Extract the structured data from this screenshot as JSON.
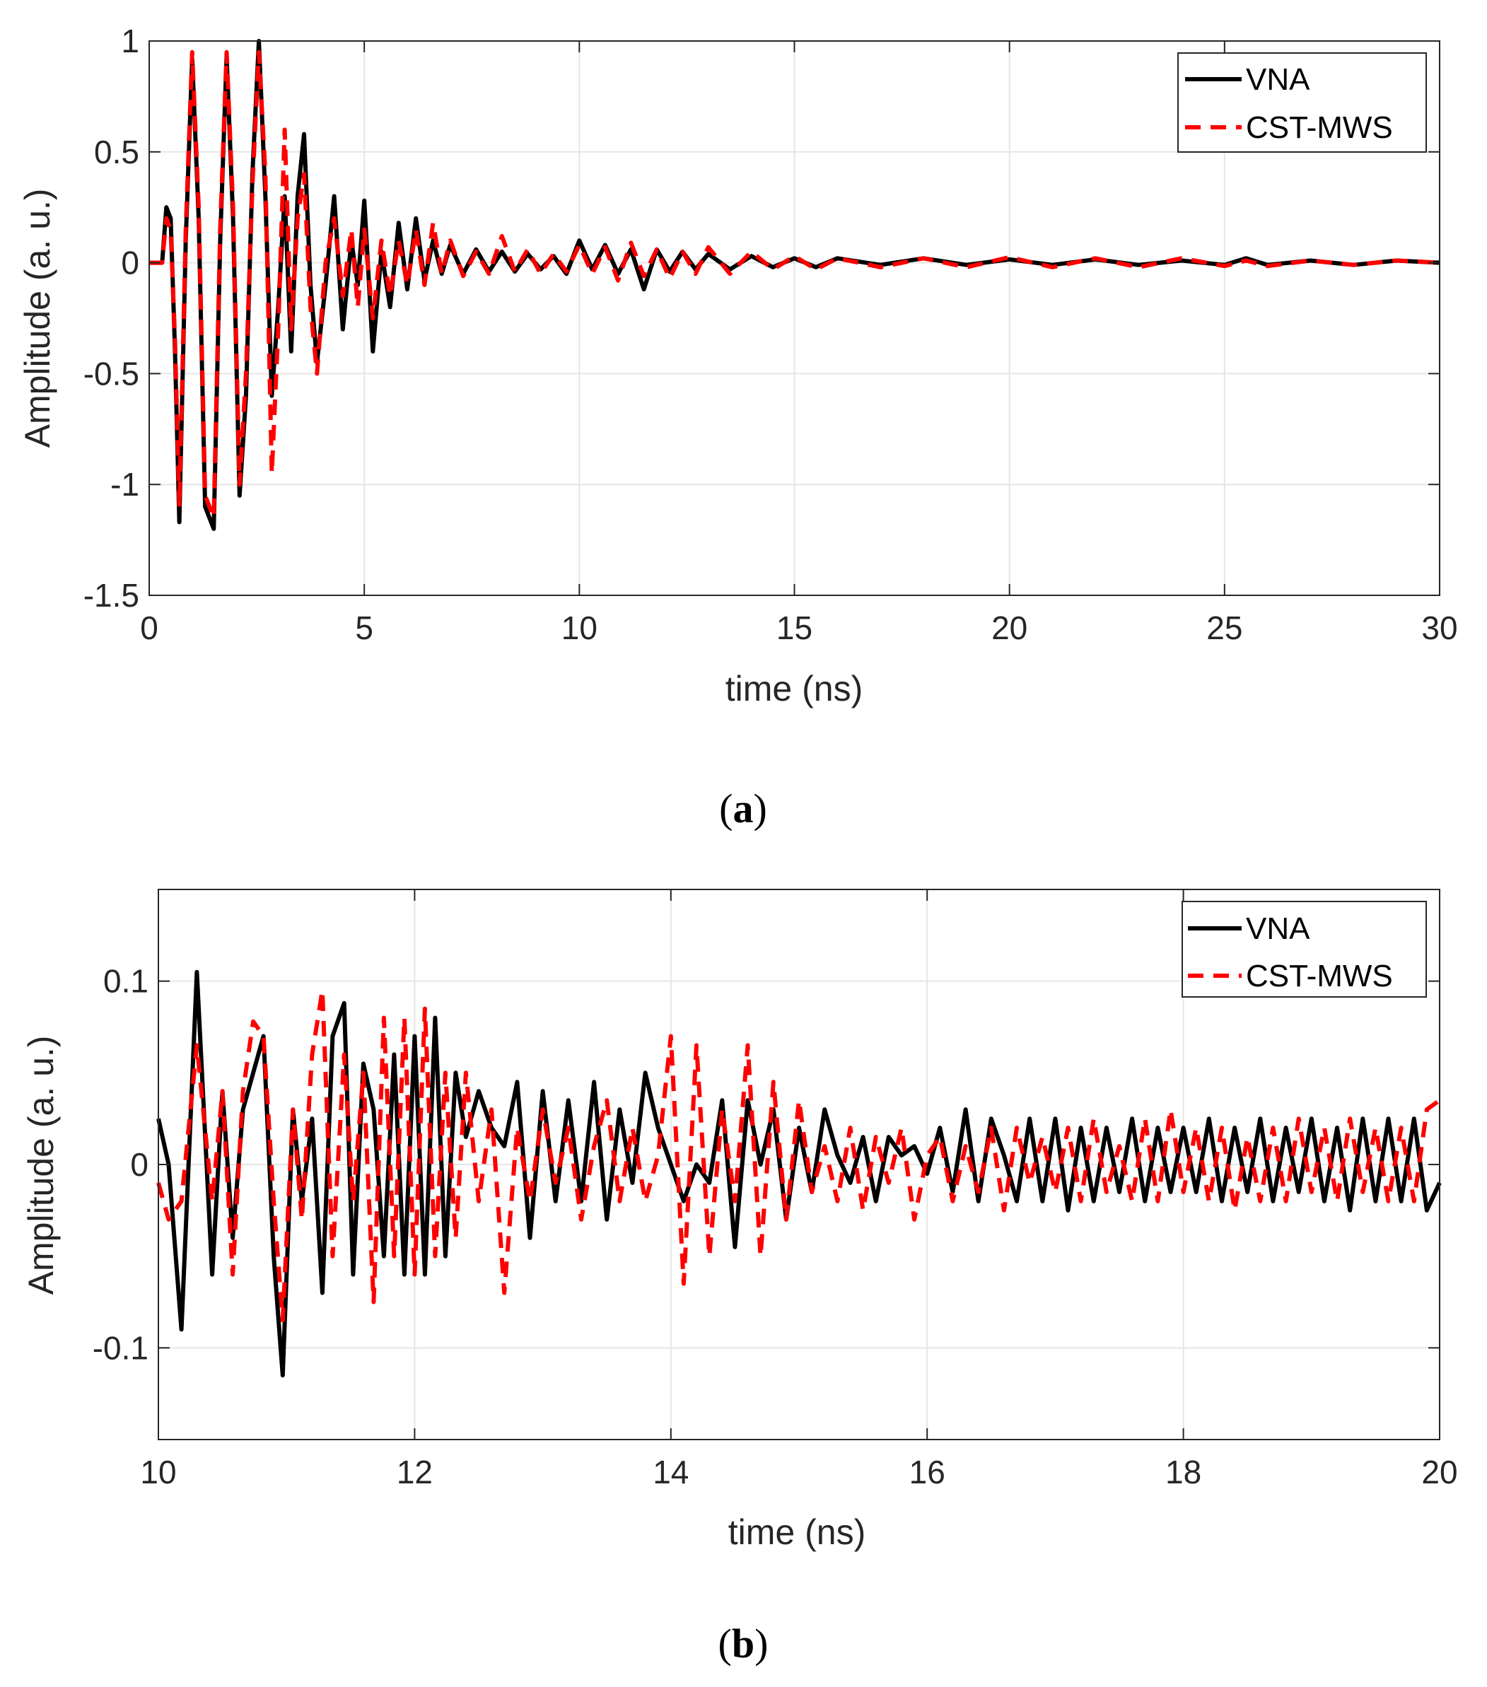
{
  "chart_data": [
    {
      "id": "a",
      "type": "line",
      "caption": "a",
      "xlabel": "time (ns)",
      "ylabel": "Amplitude (a. u.)",
      "xlim": [
        0,
        30
      ],
      "ylim": [
        -1.5,
        1
      ],
      "xticks": [
        0,
        5,
        10,
        15,
        20,
        25,
        30
      ],
      "xtick_labels": [
        "0",
        "5",
        "10",
        "15",
        "20",
        "25",
        "30"
      ],
      "yticks": [
        -1.5,
        -1,
        -0.5,
        0,
        0.5,
        1
      ],
      "ytick_labels": [
        "-1.5",
        "-1",
        "-0.5",
        "0",
        "0.5",
        "1"
      ],
      "grid": true,
      "legend_position": "top-right",
      "series": [
        {
          "name": "VNA",
          "color": "#000000",
          "style": "solid",
          "x": [
            0,
            0.3,
            0.4,
            0.5,
            0.6,
            0.7,
            0.85,
            1.0,
            1.15,
            1.3,
            1.5,
            1.65,
            1.8,
            1.95,
            2.1,
            2.25,
            2.4,
            2.55,
            2.7,
            2.85,
            3.0,
            3.15,
            3.3,
            3.45,
            3.6,
            3.75,
            3.9,
            4.1,
            4.3,
            4.5,
            4.7,
            4.85,
            5.0,
            5.2,
            5.4,
            5.6,
            5.8,
            6.0,
            6.2,
            6.4,
            6.6,
            6.8,
            7.0,
            7.3,
            7.6,
            7.9,
            8.2,
            8.5,
            8.8,
            9.1,
            9.4,
            9.7,
            10.0,
            10.3,
            10.6,
            10.9,
            11.2,
            11.5,
            11.8,
            12.1,
            12.4,
            12.7,
            13.0,
            13.5,
            14.0,
            14.5,
            15.0,
            15.5,
            16.0,
            17.0,
            18.0,
            19.0,
            20.0,
            21.0,
            22.0,
            23.0,
            24.0,
            25.0,
            25.5,
            26.0,
            27.0,
            28.0,
            29.0,
            30.0
          ],
          "values": [
            0,
            0,
            0.25,
            0.2,
            -0.4,
            -1.17,
            0.1,
            0.92,
            0.2,
            -1.1,
            -1.2,
            0.1,
            0.93,
            0.2,
            -1.05,
            -0.6,
            0.4,
            1.0,
            0.3,
            -0.6,
            -0.2,
            0.3,
            -0.4,
            0.3,
            0.58,
            -0.1,
            -0.45,
            -0.1,
            0.3,
            -0.3,
            0.1,
            -0.1,
            0.28,
            -0.4,
            0.05,
            -0.2,
            0.18,
            -0.12,
            0.2,
            -0.08,
            0.1,
            -0.05,
            0.08,
            -0.05,
            0.06,
            -0.04,
            0.05,
            -0.04,
            0.04,
            -0.03,
            0.03,
            -0.05,
            0.1,
            -0.03,
            0.08,
            -0.05,
            0.06,
            -0.12,
            0.06,
            -0.04,
            0.05,
            -0.03,
            0.04,
            -0.03,
            0.03,
            -0.02,
            0.02,
            -0.02,
            0.02,
            -0.01,
            0.02,
            -0.01,
            0.015,
            -0.01,
            0.015,
            -0.01,
            0.01,
            -0.01,
            0.02,
            -0.01,
            0.01,
            -0.01,
            0.01,
            0
          ]
        },
        {
          "name": "CST-MWS",
          "color": "#ff0000",
          "style": "dashed",
          "x": [
            0,
            0.3,
            0.4,
            0.5,
            0.6,
            0.7,
            0.85,
            1.0,
            1.15,
            1.3,
            1.5,
            1.65,
            1.8,
            1.95,
            2.1,
            2.25,
            2.4,
            2.55,
            2.7,
            2.85,
            3.0,
            3.15,
            3.3,
            3.45,
            3.6,
            3.75,
            3.9,
            4.1,
            4.3,
            4.5,
            4.7,
            4.85,
            5.0,
            5.2,
            5.4,
            5.6,
            5.8,
            6.0,
            6.2,
            6.4,
            6.6,
            6.8,
            7.0,
            7.3,
            7.6,
            7.9,
            8.2,
            8.5,
            8.8,
            9.1,
            9.4,
            9.7,
            10.0,
            10.3,
            10.6,
            10.9,
            11.2,
            11.5,
            11.8,
            12.1,
            12.4,
            12.7,
            13.0,
            13.5,
            14.0,
            14.5,
            15.0,
            15.5,
            16.0,
            17.0,
            18.0,
            19.0,
            20.0,
            21.0,
            22.0,
            23.0,
            24.0,
            25.0,
            25.5,
            26.0,
            27.0,
            28.0,
            29.0,
            30.0
          ],
          "values": [
            0,
            0,
            0.2,
            0.15,
            -0.35,
            -1.1,
            0.15,
            0.95,
            0.25,
            -1.05,
            -1.15,
            0.15,
            0.95,
            0.25,
            -1.0,
            -0.5,
            0.35,
            0.95,
            0.4,
            -0.95,
            -0.3,
            0.6,
            -0.3,
            0.2,
            0.4,
            -0.2,
            -0.5,
            0.0,
            0.2,
            -0.15,
            0.15,
            -0.2,
            0.15,
            -0.25,
            0.1,
            -0.15,
            0.1,
            -0.1,
            0.15,
            -0.1,
            0.18,
            -0.05,
            0.1,
            -0.06,
            0.05,
            -0.05,
            0.12,
            -0.04,
            0.06,
            -0.05,
            0.04,
            -0.04,
            0.08,
            -0.05,
            0.07,
            -0.08,
            0.09,
            -0.06,
            0.06,
            -0.07,
            0.05,
            -0.05,
            0.07,
            -0.05,
            0.05,
            -0.03,
            0.03,
            -0.03,
            0.02,
            -0.02,
            0.02,
            -0.02,
            0.025,
            -0.02,
            0.02,
            -0.02,
            0.02,
            -0.015,
            0.01,
            -0.015,
            0.01,
            -0.01,
            0.01,
            0
          ]
        }
      ]
    },
    {
      "id": "b",
      "type": "line",
      "caption": "b",
      "xlabel": "time (ns)",
      "ylabel": "Amplitude (a. u.)",
      "xlim": [
        10,
        20
      ],
      "ylim": [
        -0.15,
        0.15
      ],
      "xticks": [
        10,
        12,
        14,
        16,
        18,
        20
      ],
      "xtick_labels": [
        "10",
        "12",
        "14",
        "16",
        "18",
        "20"
      ],
      "yticks": [
        -0.1,
        0,
        0.1
      ],
      "ytick_labels": [
        "-0.1",
        "0",
        "0.1"
      ],
      "grid": true,
      "legend_position": "top-right",
      "series": [
        {
          "name": "VNA",
          "color": "#000000",
          "style": "solid",
          "x": [
            10.0,
            10.08,
            10.18,
            10.3,
            10.42,
            10.5,
            10.58,
            10.66,
            10.74,
            10.82,
            10.9,
            10.97,
            11.05,
            11.12,
            11.2,
            11.28,
            11.36,
            11.45,
            11.52,
            11.6,
            11.68,
            11.76,
            11.84,
            11.92,
            12.0,
            12.08,
            12.16,
            12.24,
            12.32,
            12.4,
            12.5,
            12.6,
            12.7,
            12.8,
            12.9,
            13.0,
            13.1,
            13.2,
            13.3,
            13.4,
            13.5,
            13.6,
            13.7,
            13.8,
            13.9,
            14.0,
            14.1,
            14.2,
            14.3,
            14.4,
            14.5,
            14.6,
            14.7,
            14.8,
            14.9,
            15.0,
            15.1,
            15.2,
            15.3,
            15.4,
            15.5,
            15.6,
            15.7,
            15.8,
            15.9,
            16.0,
            16.1,
            16.2,
            16.3,
            16.4,
            16.5,
            16.6,
            16.7,
            16.8,
            16.9,
            17.0,
            17.1,
            17.2,
            17.3,
            17.4,
            17.5,
            17.6,
            17.7,
            17.8,
            17.9,
            18.0,
            18.1,
            18.2,
            18.3,
            18.4,
            18.5,
            18.6,
            18.7,
            18.8,
            18.9,
            19.0,
            19.1,
            19.2,
            19.3,
            19.4,
            19.5,
            19.6,
            19.7,
            19.8,
            19.9,
            20.0
          ],
          "values": [
            0.025,
            0.0,
            -0.09,
            0.105,
            -0.06,
            0.04,
            -0.04,
            0.03,
            0.05,
            0.07,
            -0.05,
            -0.115,
            0.03,
            -0.02,
            0.025,
            -0.07,
            0.07,
            0.088,
            -0.06,
            0.055,
            0.03,
            -0.05,
            0.06,
            -0.06,
            0.07,
            -0.06,
            0.08,
            -0.05,
            0.05,
            0.015,
            0.04,
            0.02,
            0.01,
            0.045,
            -0.04,
            0.04,
            -0.02,
            0.035,
            -0.02,
            0.045,
            -0.03,
            0.03,
            -0.01,
            0.05,
            0.02,
            0.0,
            -0.02,
            0.0,
            -0.01,
            0.035,
            -0.045,
            0.035,
            0.0,
            0.03,
            -0.03,
            0.02,
            -0.015,
            0.03,
            0.005,
            -0.01,
            0.015,
            -0.02,
            0.015,
            0.005,
            0.01,
            -0.005,
            0.02,
            -0.015,
            0.03,
            -0.02,
            0.025,
            0.005,
            -0.02,
            0.025,
            -0.02,
            0.025,
            -0.025,
            0.02,
            -0.02,
            0.02,
            -0.015,
            0.025,
            -0.02,
            0.02,
            -0.015,
            0.02,
            -0.015,
            0.025,
            -0.02,
            0.02,
            -0.015,
            0.025,
            -0.02,
            0.02,
            -0.015,
            0.025,
            -0.02,
            0.02,
            -0.025,
            0.025,
            -0.02,
            0.025,
            -0.02,
            0.025,
            -0.025,
            -0.01
          ]
        },
        {
          "name": "CST-MWS",
          "color": "#ff0000",
          "style": "dashed",
          "x": [
            10.0,
            10.08,
            10.18,
            10.3,
            10.42,
            10.5,
            10.58,
            10.66,
            10.74,
            10.82,
            10.9,
            10.97,
            11.05,
            11.12,
            11.2,
            11.28,
            11.36,
            11.45,
            11.52,
            11.6,
            11.68,
            11.76,
            11.84,
            11.92,
            12.0,
            12.08,
            12.16,
            12.24,
            12.32,
            12.4,
            12.5,
            12.6,
            12.7,
            12.8,
            12.9,
            13.0,
            13.1,
            13.2,
            13.3,
            13.4,
            13.5,
            13.6,
            13.7,
            13.8,
            13.9,
            14.0,
            14.1,
            14.2,
            14.3,
            14.4,
            14.5,
            14.6,
            14.7,
            14.8,
            14.9,
            15.0,
            15.1,
            15.2,
            15.3,
            15.4,
            15.5,
            15.6,
            15.7,
            15.8,
            15.9,
            16.0,
            16.1,
            16.2,
            16.3,
            16.4,
            16.5,
            16.6,
            16.7,
            16.8,
            16.9,
            17.0,
            17.1,
            17.2,
            17.3,
            17.4,
            17.5,
            17.6,
            17.7,
            17.8,
            17.9,
            18.0,
            18.1,
            18.2,
            18.3,
            18.4,
            18.5,
            18.6,
            18.7,
            18.8,
            18.9,
            19.0,
            19.1,
            19.2,
            19.3,
            19.4,
            19.5,
            19.6,
            19.7,
            19.8,
            19.9,
            20.0
          ],
          "values": [
            -0.01,
            -0.03,
            -0.02,
            0.065,
            -0.02,
            0.04,
            -0.06,
            0.04,
            0.078,
            0.07,
            -0.02,
            -0.085,
            0.03,
            -0.03,
            0.06,
            0.095,
            -0.05,
            0.06,
            -0.02,
            0.05,
            -0.075,
            0.08,
            -0.05,
            0.08,
            -0.06,
            0.085,
            -0.05,
            0.05,
            -0.04,
            0.05,
            -0.02,
            0.03,
            -0.07,
            0.02,
            -0.02,
            0.03,
            -0.01,
            0.02,
            -0.03,
            0.01,
            0.035,
            -0.02,
            0.02,
            -0.02,
            0.005,
            0.07,
            -0.065,
            0.065,
            -0.05,
            0.03,
            -0.02,
            0.065,
            -0.05,
            0.045,
            -0.03,
            0.035,
            -0.015,
            0.01,
            -0.02,
            0.02,
            -0.025,
            0.015,
            -0.01,
            0.02,
            -0.03,
            0.005,
            0.015,
            -0.02,
            0.01,
            -0.015,
            0.02,
            -0.025,
            0.02,
            -0.01,
            0.015,
            -0.015,
            0.02,
            -0.02,
            0.025,
            -0.015,
            0.01,
            -0.02,
            0.025,
            -0.02,
            0.03,
            -0.015,
            0.02,
            -0.02,
            0.02,
            -0.025,
            0.015,
            -0.02,
            0.02,
            -0.02,
            0.025,
            -0.015,
            0.02,
            -0.02,
            0.025,
            -0.015,
            0.02,
            -0.02,
            0.02,
            -0.02,
            0.03,
            0.035
          ]
        }
      ]
    }
  ]
}
